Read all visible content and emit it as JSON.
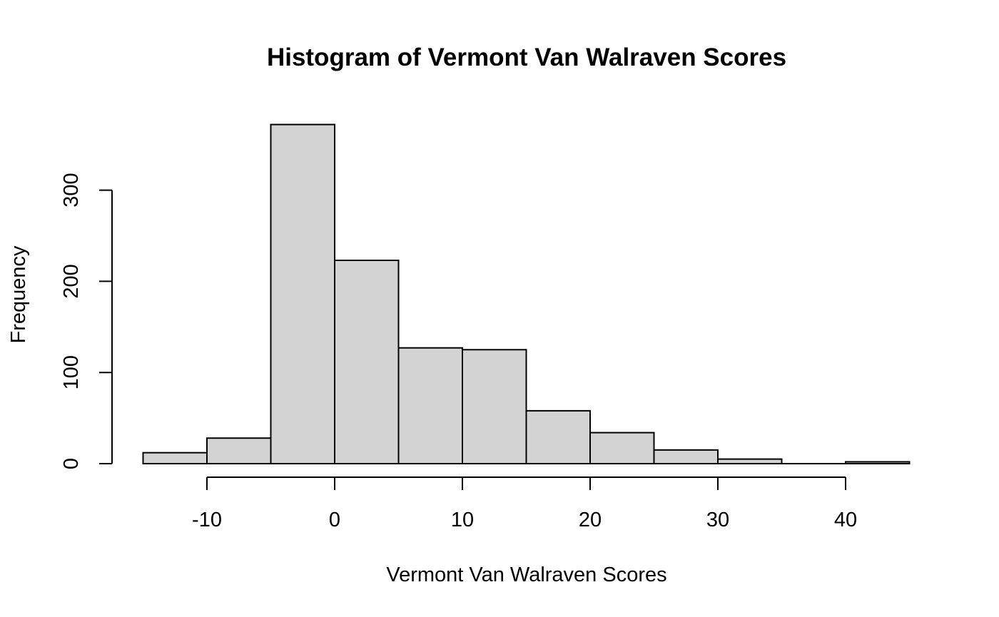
{
  "chart_data": {
    "type": "bar",
    "title": "Histogram of Vermont Van Walraven Scores",
    "xlabel": "Vermont Van Walraven Scores",
    "ylabel": "Frequency",
    "bins": [
      {
        "start": -15,
        "end": -10,
        "count": 12
      },
      {
        "start": -10,
        "end": -5,
        "count": 28
      },
      {
        "start": -5,
        "end": 0,
        "count": 372
      },
      {
        "start": 0,
        "end": 5,
        "count": 223
      },
      {
        "start": 5,
        "end": 10,
        "count": 127
      },
      {
        "start": 10,
        "end": 15,
        "count": 125
      },
      {
        "start": 15,
        "end": 20,
        "count": 58
      },
      {
        "start": 20,
        "end": 25,
        "count": 34
      },
      {
        "start": 25,
        "end": 30,
        "count": 15
      },
      {
        "start": 30,
        "end": 35,
        "count": 5
      },
      {
        "start": 35,
        "end": 40,
        "count": 0
      },
      {
        "start": 40,
        "end": 45,
        "count": 2
      }
    ],
    "xticks": [
      -10,
      0,
      10,
      20,
      30,
      40
    ],
    "yticks": [
      0,
      100,
      200,
      300
    ],
    "xlim": [
      -15,
      45
    ],
    "ylim": [
      0,
      372
    ],
    "grid": false,
    "bar_fill": "#d3d3d3",
    "bar_stroke": "#000000"
  }
}
